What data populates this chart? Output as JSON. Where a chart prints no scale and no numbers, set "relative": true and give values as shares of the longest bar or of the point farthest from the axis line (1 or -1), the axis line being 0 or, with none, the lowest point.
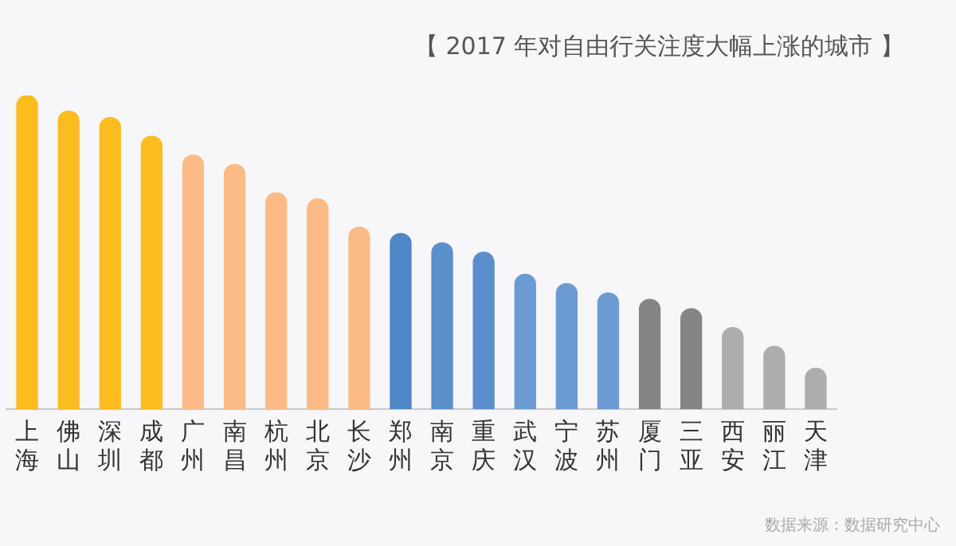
{
  "chart_data": {
    "type": "bar",
    "title": "【 2017 年对自由行关注度大幅上涨的城市 】",
    "categories": [
      "上海",
      "佛山",
      "深圳",
      "成都",
      "广州",
      "南昌",
      "杭州",
      "北京",
      "长沙",
      "郑州",
      "南京",
      "重庆",
      "武汉",
      "宁波",
      "苏州",
      "厦门",
      "三亚",
      "西安",
      "丽江",
      "天津"
    ],
    "values": [
      1,
      0.95,
      0.93,
      0.87,
      0.81,
      0.78,
      0.69,
      0.67,
      0.58,
      0.56,
      0.53,
      0.5,
      0.43,
      0.4,
      0.37,
      0.35,
      0.32,
      0.26,
      0.2,
      0.13
    ],
    "colors": [
      "#fbbc1e",
      "#fbbc1e",
      "#fbbc1e",
      "#fbbc1e",
      "#fcbb86",
      "#fcbb86",
      "#fcbb86",
      "#fcbb86",
      "#fcbb86",
      "#4f86c6",
      "#5b8fcb",
      "#5b8fcb",
      "#6b9bd2",
      "#6b9bd2",
      "#6b9bd2",
      "#858487",
      "#858487",
      "#adacae",
      "#adacae",
      "#adacae"
    ],
    "relative": true,
    "grid": false,
    "legend": false,
    "annotations": [
      "数据来源：数据研究中心"
    ]
  }
}
